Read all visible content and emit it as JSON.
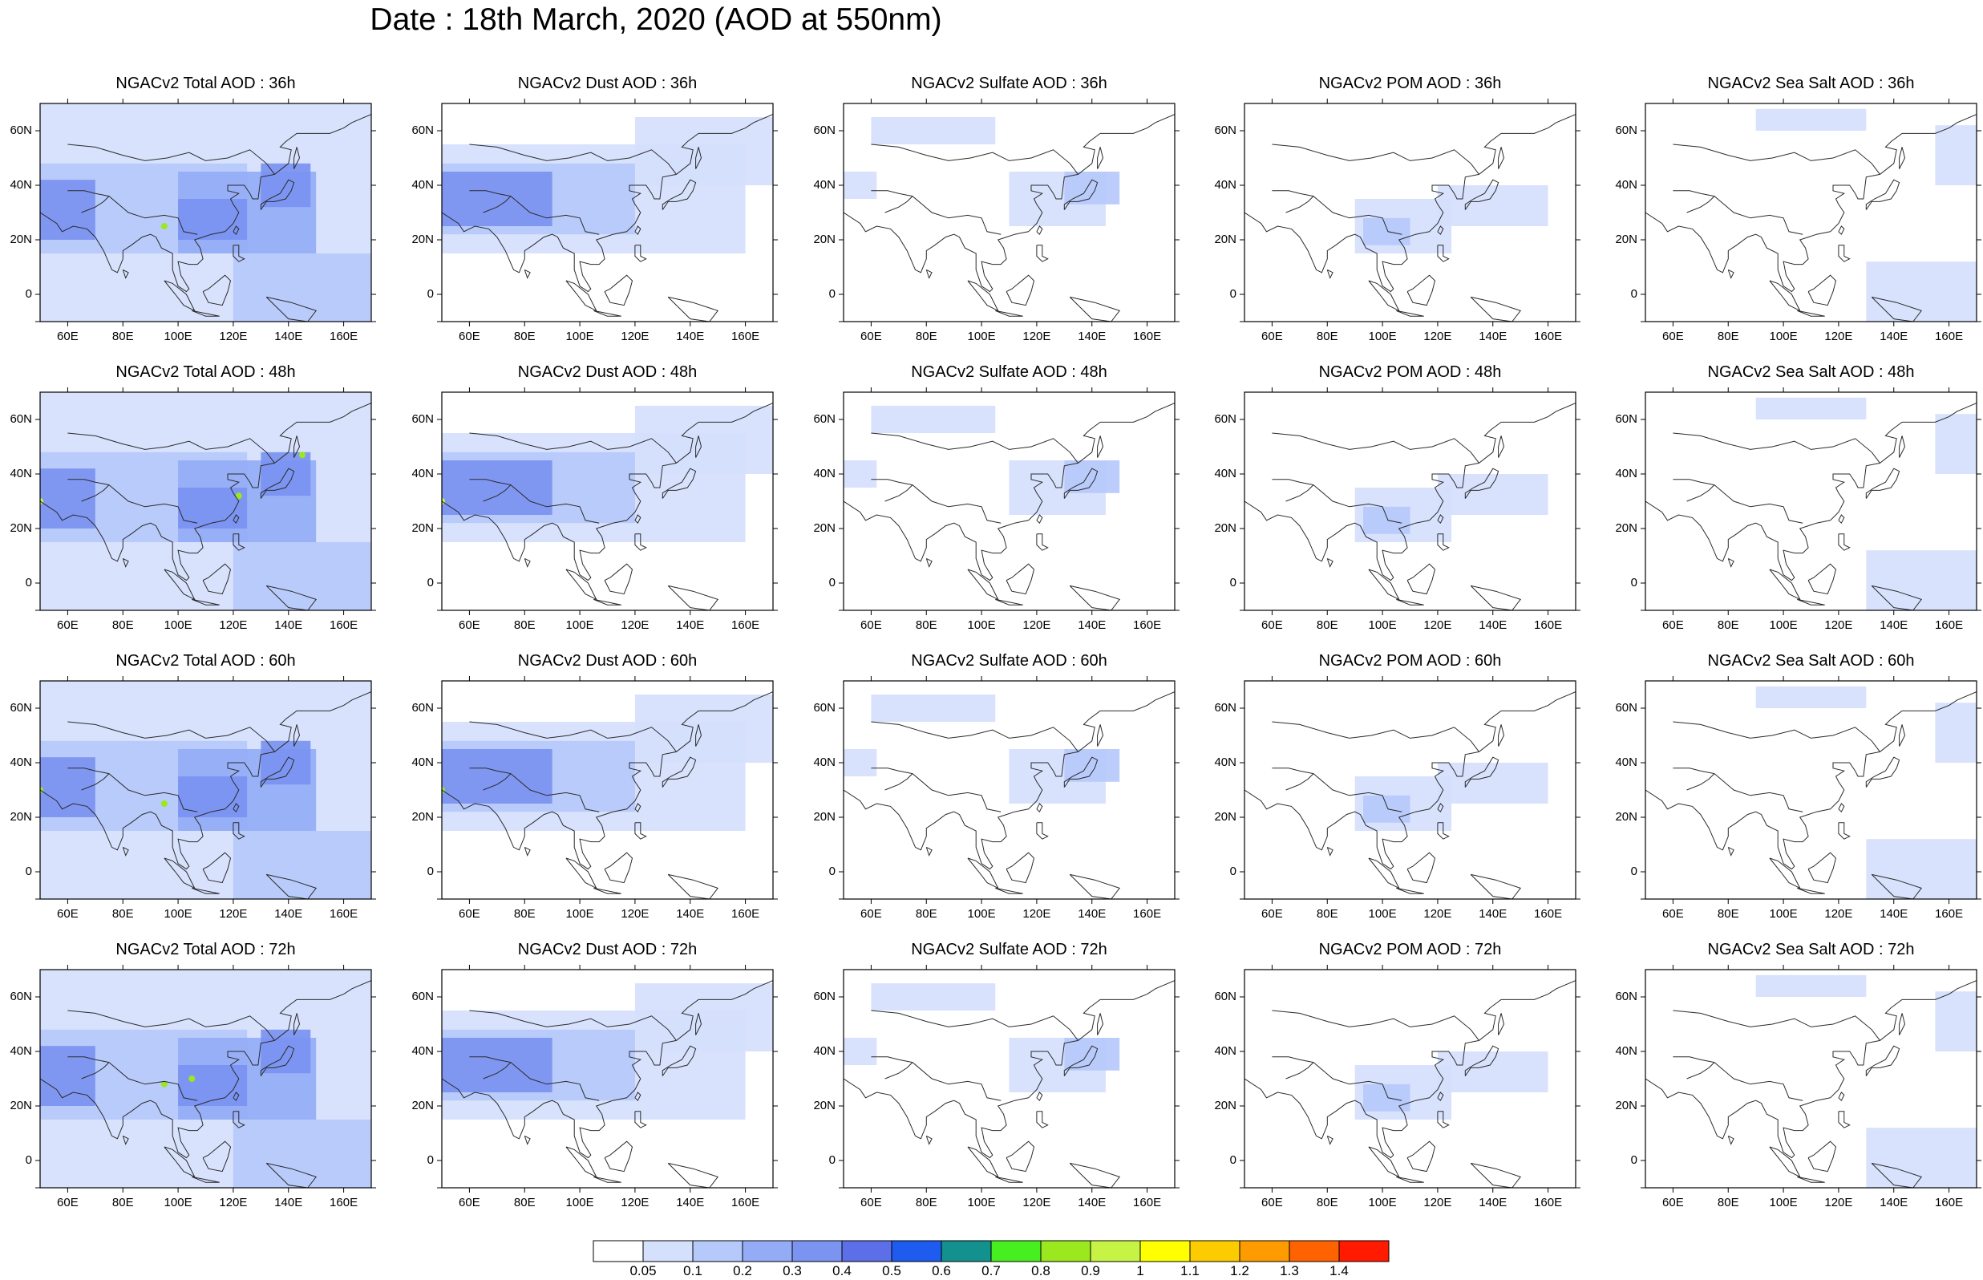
{
  "title": "Date : 18th March, 2020 (AOD at 550nm)",
  "colors": {
    "coastline": "#2a2a2a",
    "frame": "#000000",
    "level_1": "#d5e0fd",
    "level_2": "#b6c9fb",
    "level_3": "#94acf6",
    "level_4": "#6d86ee",
    "level_5": "#48ea3c",
    "level_6": "#f3f315"
  },
  "chart_data": {
    "type": "heatmap",
    "variable": "AOD at 550nm",
    "date": "18th March, 2020",
    "lon_range": [
      50,
      170
    ],
    "lat_range": [
      -10,
      70
    ],
    "lat_ticks": [
      {
        "value": -10,
        "label": ""
      },
      {
        "value": 0,
        "label": "0"
      },
      {
        "value": 20,
        "label": "20N"
      },
      {
        "value": 40,
        "label": "40N"
      },
      {
        "value": 60,
        "label": "60N"
      }
    ],
    "lon_ticks": [
      {
        "value": 60,
        "label": "60E"
      },
      {
        "value": 80,
        "label": "80E"
      },
      {
        "value": 100,
        "label": "100E"
      },
      {
        "value": 120,
        "label": "120E"
      },
      {
        "value": 140,
        "label": "140E"
      },
      {
        "value": 160,
        "label": "160E"
      }
    ],
    "panels": [
      [
        {
          "title": "NGACv2 Total AOD : 36h",
          "species": "total",
          "hour": 36
        },
        {
          "title": "NGACv2 Dust AOD : 36h",
          "species": "dust",
          "hour": 36
        },
        {
          "title": "NGACv2 Sulfate AOD : 36h",
          "species": "sulfate",
          "hour": 36
        },
        {
          "title": "NGACv2 POM AOD : 36h",
          "species": "pom",
          "hour": 36
        },
        {
          "title": "NGACv2 Sea Salt AOD : 36h",
          "species": "seasalt",
          "hour": 36
        }
      ],
      [
        {
          "title": "NGACv2 Total AOD : 48h",
          "species": "total",
          "hour": 48
        },
        {
          "title": "NGACv2 Dust AOD : 48h",
          "species": "dust",
          "hour": 48
        },
        {
          "title": "NGACv2 Sulfate AOD : 48h",
          "species": "sulfate",
          "hour": 48
        },
        {
          "title": "NGACv2 POM AOD : 48h",
          "species": "pom",
          "hour": 48
        },
        {
          "title": "NGACv2 Sea Salt AOD : 48h",
          "species": "seasalt",
          "hour": 48
        }
      ],
      [
        {
          "title": "NGACv2 Total AOD : 60h",
          "species": "total",
          "hour": 60
        },
        {
          "title": "NGACv2 Dust AOD : 60h",
          "species": "dust",
          "hour": 60
        },
        {
          "title": "NGACv2 Sulfate AOD : 60h",
          "species": "sulfate",
          "hour": 60
        },
        {
          "title": "NGACv2 POM AOD : 60h",
          "species": "pom",
          "hour": 60
        },
        {
          "title": "NGACv2 Sea Salt AOD : 60h",
          "species": "seasalt",
          "hour": 60
        }
      ],
      [
        {
          "title": "NGACv2 Total AOD : 72h",
          "species": "total",
          "hour": 72
        },
        {
          "title": "NGACv2 Dust AOD : 72h",
          "species": "dust",
          "hour": 72
        },
        {
          "title": "NGACv2 Sulfate AOD : 72h",
          "species": "sulfate",
          "hour": 72
        },
        {
          "title": "NGACv2 POM AOD : 72h",
          "species": "pom",
          "hour": 72
        },
        {
          "title": "NGACv2 Sea Salt  AOD : 72h",
          "species": "seasalt",
          "hour": 72
        }
      ]
    ],
    "fields": {
      "total": [
        {
          "lon": [
            50,
            170
          ],
          "lat": [
            -10,
            70
          ],
          "aod": 0.08
        },
        {
          "lon": [
            50,
            125
          ],
          "lat": [
            15,
            48
          ],
          "aod": 0.15
        },
        {
          "lon": [
            100,
            150
          ],
          "lat": [
            15,
            45
          ],
          "aod": 0.22
        },
        {
          "lon": [
            50,
            70
          ],
          "lat": [
            20,
            42
          ],
          "aod": 0.3
        },
        {
          "lon": [
            100,
            125
          ],
          "lat": [
            20,
            35
          ],
          "aod": 0.35
        },
        {
          "lon": [
            130,
            148
          ],
          "lat": [
            32,
            48
          ],
          "aod": 0.3
        },
        {
          "lon": [
            120,
            170
          ],
          "lat": [
            -10,
            15
          ],
          "aod": 0.12
        }
      ],
      "dust": [
        {
          "lon": [
            50,
            160
          ],
          "lat": [
            15,
            55
          ],
          "aod": 0.08
        },
        {
          "lon": [
            50,
            120
          ],
          "lat": [
            22,
            48
          ],
          "aod": 0.15
        },
        {
          "lon": [
            50,
            90
          ],
          "lat": [
            25,
            45
          ],
          "aod": 0.3
        },
        {
          "lon": [
            120,
            170
          ],
          "lat": [
            40,
            65
          ],
          "aod": 0.08
        }
      ],
      "sulfate": [
        {
          "lon": [
            50,
            62
          ],
          "lat": [
            35,
            45
          ],
          "aod": 0.08
        },
        {
          "lon": [
            60,
            105
          ],
          "lat": [
            55,
            65
          ],
          "aod": 0.08
        },
        {
          "lon": [
            110,
            145
          ],
          "lat": [
            25,
            45
          ],
          "aod": 0.08
        },
        {
          "lon": [
            130,
            150
          ],
          "lat": [
            33,
            45
          ],
          "aod": 0.15
        }
      ],
      "pom": [
        {
          "lon": [
            90,
            125
          ],
          "lat": [
            15,
            35
          ],
          "aod": 0.08
        },
        {
          "lon": [
            120,
            160
          ],
          "lat": [
            25,
            40
          ],
          "aod": 0.08
        },
        {
          "lon": [
            93,
            110
          ],
          "lat": [
            18,
            28
          ],
          "aod": 0.15
        }
      ],
      "seasalt": [
        {
          "lon": [
            130,
            170
          ],
          "lat": [
            -10,
            12
          ],
          "aod": 0.08
        },
        {
          "lon": [
            90,
            130
          ],
          "lat": [
            60,
            68
          ],
          "aod": 0.08
        },
        {
          "lon": [
            155,
            170
          ],
          "lat": [
            40,
            62
          ],
          "aod": 0.08
        }
      ]
    },
    "hotspots": [
      {
        "species": "total",
        "hour": 36,
        "lon": 95,
        "lat": 25,
        "aod": 0.85
      },
      {
        "species": "total",
        "hour": 48,
        "lon": 50,
        "lat": 30,
        "aod": 0.95
      },
      {
        "species": "total",
        "hour": 48,
        "lon": 145,
        "lat": 47,
        "aod": 0.8
      },
      {
        "species": "total",
        "hour": 48,
        "lon": 122,
        "lat": 32,
        "aod": 0.8
      },
      {
        "species": "total",
        "hour": 60,
        "lon": 50,
        "lat": 30,
        "aod": 0.85
      },
      {
        "species": "total",
        "hour": 60,
        "lon": 95,
        "lat": 25,
        "aod": 0.8
      },
      {
        "species": "total",
        "hour": 72,
        "lon": 95,
        "lat": 28,
        "aod": 0.8
      },
      {
        "species": "total",
        "hour": 72,
        "lon": 105,
        "lat": 30,
        "aod": 0.85
      },
      {
        "species": "dust",
        "hour": 48,
        "lon": 50,
        "lat": 30,
        "aod": 0.9
      },
      {
        "species": "dust",
        "hour": 60,
        "lon": 50,
        "lat": 30,
        "aod": 0.8
      }
    ],
    "colorbar": {
      "labels": [
        "0.05",
        "0.1",
        "0.2",
        "0.3",
        "0.4",
        "0.5",
        "0.6",
        "0.7",
        "0.8",
        "0.9",
        "1",
        "1.1",
        "1.2",
        "1.3",
        "1.4"
      ],
      "colors": [
        "#ffffff",
        "#d5e0fd",
        "#b6c9fb",
        "#94acf6",
        "#7b93f1",
        "#5d6fe8",
        "#1e5cf0",
        "#12918f",
        "#47ee20",
        "#9ae81d",
        "#c7f344",
        "#ffff00",
        "#fdcc00",
        "#fd9b00",
        "#ff6200",
        "#ff1a00"
      ]
    }
  }
}
